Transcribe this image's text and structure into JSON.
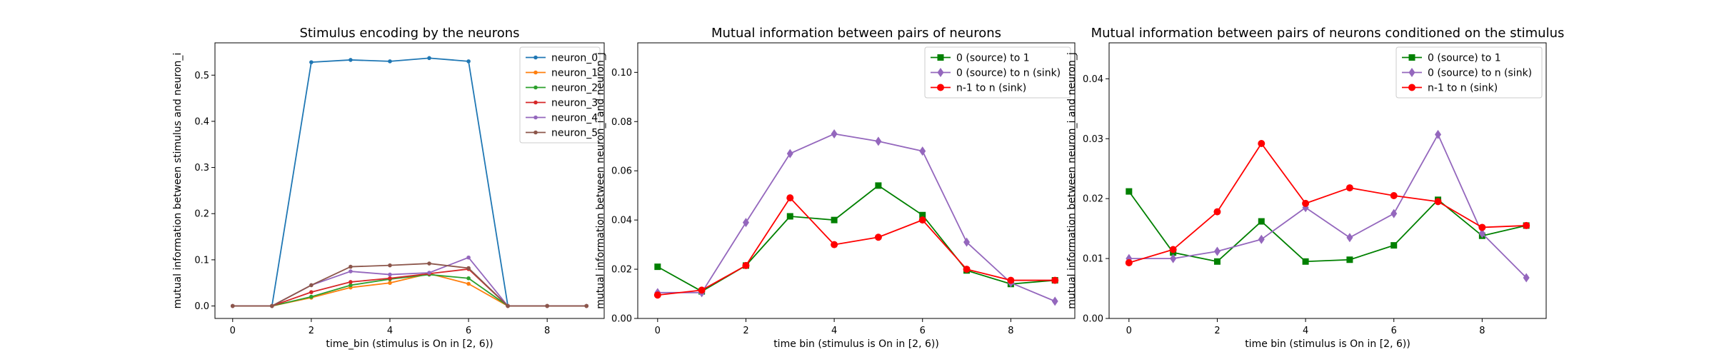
{
  "chart_data": [
    {
      "type": "line",
      "title": "Stimulus encoding by the neurons",
      "xlabel": "time_bin (stimulus is On in [2, 6))",
      "ylabel": "mutual information between stimulus and neuron_i",
      "xlim": [
        -0.45,
        9.45
      ],
      "ylim": [
        -0.027,
        0.57
      ],
      "xticks": [
        0,
        2,
        4,
        6,
        8
      ],
      "xtick_labels": [
        "0",
        "2",
        "4",
        "6",
        "8"
      ],
      "yticks": [
        0.0,
        0.1,
        0.2,
        0.3,
        0.4,
        0.5
      ],
      "ytick_labels": [
        "0.0",
        "0.1",
        "0.2",
        "0.3",
        "0.4",
        "0.5"
      ],
      "legend_position": "upper-right",
      "x": [
        0,
        1,
        2,
        3,
        4,
        5,
        6,
        7,
        8,
        9
      ],
      "series": [
        {
          "name": "neuron_0",
          "color": "#1f77b4",
          "marker": "point",
          "values": [
            0,
            0,
            0.528,
            0.533,
            0.53,
            0.537,
            0.53,
            0,
            0,
            0
          ]
        },
        {
          "name": "neuron_1",
          "color": "#ff7f0e",
          "marker": "point",
          "values": [
            0,
            0,
            0.018,
            0.04,
            0.05,
            0.07,
            0.048,
            0,
            0,
            0
          ]
        },
        {
          "name": "neuron_2",
          "color": "#2ca02c",
          "marker": "point",
          "values": [
            0,
            0,
            0.02,
            0.045,
            0.058,
            0.068,
            0.06,
            0,
            0,
            0
          ]
        },
        {
          "name": "neuron_3",
          "color": "#d62728",
          "marker": "point",
          "values": [
            0,
            0,
            0.03,
            0.052,
            0.06,
            0.07,
            0.08,
            0,
            0,
            0
          ]
        },
        {
          "name": "neuron_4",
          "color": "#9467bd",
          "marker": "point",
          "values": [
            0,
            0,
            0.045,
            0.075,
            0.068,
            0.072,
            0.105,
            0,
            0,
            0
          ]
        },
        {
          "name": "neuron_5",
          "color": "#8c564b",
          "marker": "point",
          "values": [
            0,
            0,
            0.045,
            0.085,
            0.088,
            0.092,
            0.082,
            0,
            0,
            0
          ]
        }
      ]
    },
    {
      "type": "line",
      "title": "Mutual information between pairs of neurons",
      "xlabel": "time bin (stimulus is On in [2, 6))",
      "ylabel": "mutual information between neuron_i and neuron_j",
      "xlim": [
        -0.45,
        9.45
      ],
      "ylim": [
        0.0,
        0.112
      ],
      "xticks": [
        0,
        2,
        4,
        6,
        8
      ],
      "xtick_labels": [
        "0",
        "2",
        "4",
        "6",
        "8"
      ],
      "yticks": [
        0.0,
        0.02,
        0.04,
        0.06,
        0.08,
        0.1
      ],
      "ytick_labels": [
        "0.00",
        "0.02",
        "0.04",
        "0.06",
        "0.08",
        "0.10"
      ],
      "legend_position": "upper-right",
      "x": [
        0,
        1,
        2,
        3,
        4,
        5,
        6,
        7,
        8,
        9
      ],
      "series": [
        {
          "name": "0 (source) to 1",
          "color": "#008000",
          "marker": "square",
          "values": [
            0.021,
            0.011,
            0.0215,
            0.0415,
            0.04,
            0.054,
            0.042,
            0.0195,
            0.014,
            0.0155
          ]
        },
        {
          "name": "0 (source) to n (sink)",
          "color": "#9467bd",
          "marker": "diamond",
          "values": [
            0.0105,
            0.0105,
            0.039,
            0.067,
            0.075,
            0.072,
            0.068,
            0.031,
            0.0145,
            0.007
          ]
        },
        {
          "name": "n-1 to n (sink)",
          "color": "#ff0000",
          "marker": "circle",
          "values": [
            0.0095,
            0.0115,
            0.0215,
            0.049,
            0.03,
            0.033,
            0.04,
            0.02,
            0.0155,
            0.0155
          ]
        }
      ]
    },
    {
      "type": "line",
      "title": "Mutual information between pairs of neurons conditioned on the stimulus",
      "xlabel": "time bin (stimulus is On in [2, 6))",
      "ylabel": "mutual information between neuron_i and neuron_j",
      "xlim": [
        -0.45,
        9.45
      ],
      "ylim": [
        0.0,
        0.046
      ],
      "xticks": [
        0,
        2,
        4,
        6,
        8
      ],
      "xtick_labels": [
        "0",
        "2",
        "4",
        "6",
        "8"
      ],
      "yticks": [
        0.0,
        0.01,
        0.02,
        0.03,
        0.04
      ],
      "ytick_labels": [
        "0.00",
        "0.01",
        "0.02",
        "0.03",
        "0.04"
      ],
      "legend_position": "upper-right",
      "x": [
        0,
        1,
        2,
        3,
        4,
        5,
        6,
        7,
        8,
        9
      ],
      "series": [
        {
          "name": "0 (source) to 1",
          "color": "#008000",
          "marker": "square",
          "values": [
            0.0212,
            0.011,
            0.0095,
            0.0162,
            0.0095,
            0.0098,
            0.0122,
            0.0198,
            0.0138,
            0.0155
          ]
        },
        {
          "name": "0 (source) to n (sink)",
          "color": "#9467bd",
          "marker": "diamond",
          "values": [
            0.01,
            0.01,
            0.0112,
            0.0132,
            0.0185,
            0.0135,
            0.0175,
            0.0307,
            0.0142,
            0.0068
          ]
        },
        {
          "name": "n-1 to n (sink)",
          "color": "#ff0000",
          "marker": "circle",
          "values": [
            0.0093,
            0.0115,
            0.0178,
            0.0292,
            0.0192,
            0.0218,
            0.0205,
            0.0195,
            0.0152,
            0.0155
          ]
        }
      ]
    }
  ]
}
